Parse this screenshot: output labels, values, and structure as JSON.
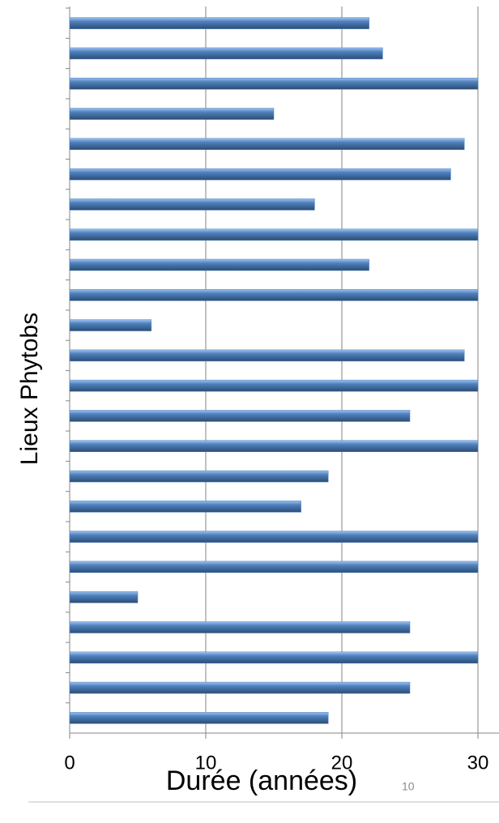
{
  "chart_data": {
    "type": "bar",
    "orientation": "horizontal",
    "categories": [
      null,
      null,
      null,
      null,
      null,
      null,
      null,
      null,
      null,
      null,
      null,
      null,
      null,
      null,
      null,
      null,
      null,
      null,
      null,
      null,
      null,
      null,
      null,
      null
    ],
    "values": [
      22,
      23,
      30,
      15,
      29,
      28,
      18,
      30,
      22,
      30,
      6,
      29,
      30,
      25,
      30,
      19,
      17,
      30,
      30,
      5,
      25,
      30,
      25,
      19
    ],
    "color": "#4f81bd",
    "xlim": [
      0,
      30
    ],
    "xticks": [
      0,
      10,
      20,
      30
    ],
    "grid": true,
    "x_label": "Durée (années)",
    "y_label": "Lieux Phytobs"
  },
  "page_number": "10"
}
